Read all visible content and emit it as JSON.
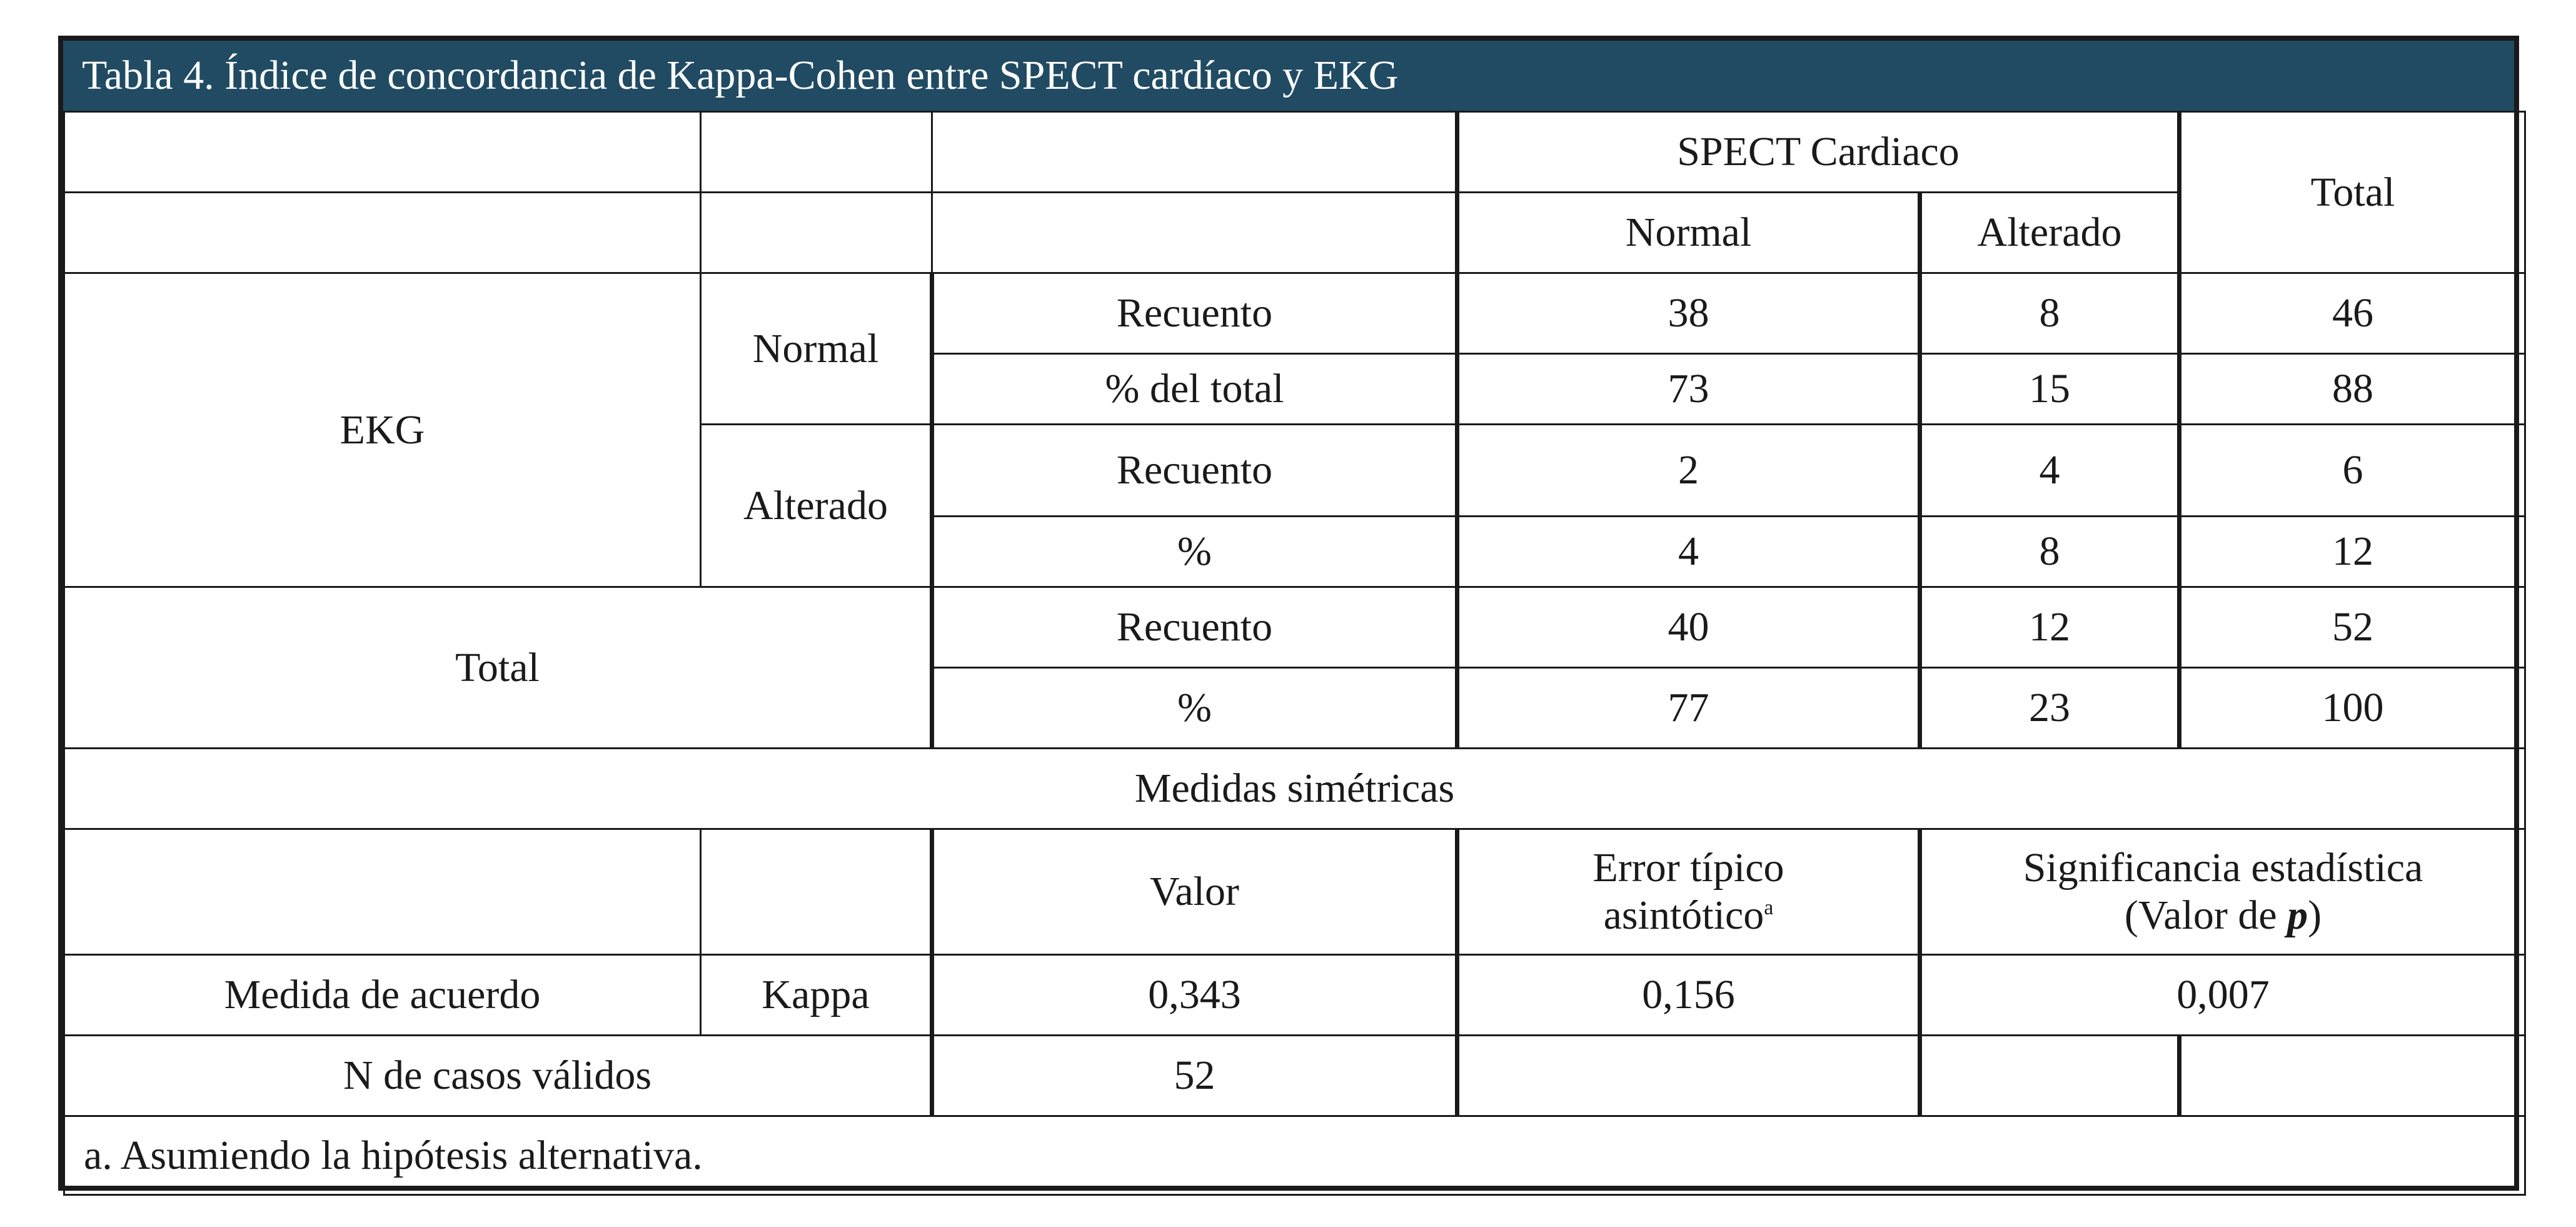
{
  "title": "Tabla 4. Índice de concordancia de Kappa-Cohen entre SPECT cardíaco y EKG",
  "header": {
    "spect": "SPECT Cardiaco",
    "total": "Total",
    "normal": "Normal",
    "alterado": "Alterado"
  },
  "ekg": {
    "label": "EKG",
    "normal": {
      "label": "Normal",
      "recuento": {
        "label": "Recuento",
        "normal": "38",
        "alterado": "8",
        "total": "46"
      },
      "pct": {
        "label": "% del total",
        "normal": "73",
        "alterado": "15",
        "total": "88"
      }
    },
    "alterado": {
      "label": "Alterado",
      "recuento": {
        "label": "Recuento",
        "normal": "2",
        "alterado": "4",
        "total": "6"
      },
      "pct": {
        "label": "%",
        "normal": "4",
        "alterado": "8",
        "total": "12"
      }
    }
  },
  "total_row": {
    "label": "Total",
    "recuento": {
      "label": "Recuento",
      "normal": "40",
      "alterado": "12",
      "total": "52"
    },
    "pct": {
      "label": "%",
      "normal": "77",
      "alterado": "23",
      "total": "100"
    }
  },
  "symmetric": {
    "title": "Medidas simétricas",
    "valor": "Valor",
    "error_line1": "Error típico",
    "error_line2": "asintótico",
    "error_sup": "a",
    "sig_line1": "Significancia estadística",
    "sig_prefix": "(Valor de ",
    "sig_p": "p",
    "sig_suffix": ")",
    "measure_label": "Medida de acuerdo",
    "kappa_label": "Kappa",
    "kappa_value": "0,343",
    "kappa_error": "0,156",
    "kappa_sig": "0,007",
    "n_label": "N de casos válidos",
    "n_value": "52"
  },
  "footnote": "a. Asumiendo la hipótesis alternativa."
}
